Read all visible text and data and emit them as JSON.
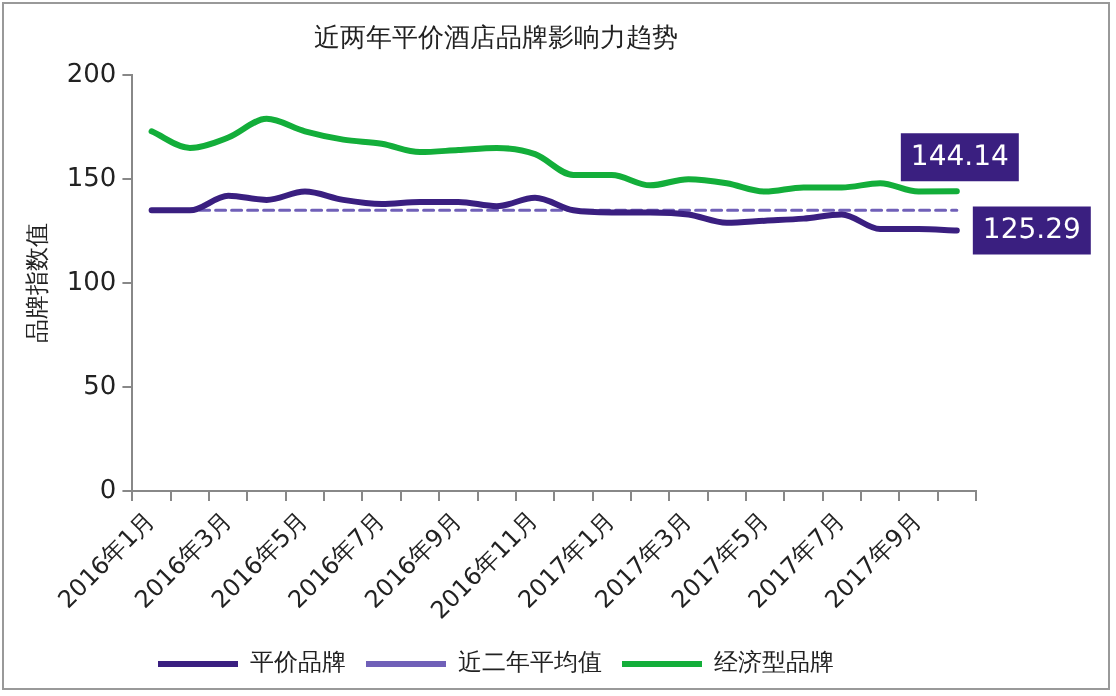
{
  "chart_data": {
    "type": "line",
    "title": "近两年平价酒店品牌影响力趋势",
    "ylabel": "品牌指数值",
    "categories": [
      "2016年1月",
      null,
      "2016年3月",
      null,
      "2016年5月",
      null,
      "2016年7月",
      null,
      "2016年9月",
      null,
      "2016年11月",
      null,
      "2017年1月",
      null,
      "2017年3月",
      null,
      "2017年5月",
      null,
      "2017年7月",
      null,
      "2017年9月",
      null
    ],
    "series": [
      {
        "name": "平价品牌",
        "color": "#3a1f80",
        "values": [
          135,
          135,
          142,
          140,
          144,
          140,
          138,
          139,
          139,
          137,
          141,
          135,
          134,
          134,
          133,
          129,
          130,
          131,
          133,
          126,
          126,
          125.29
        ],
        "value_labels": [
          null,
          null,
          null,
          null,
          null,
          null,
          null,
          null,
          null,
          null,
          null,
          null,
          null,
          null,
          null,
          null,
          null,
          null,
          null,
          null,
          null,
          "125.29"
        ]
      },
      {
        "name": "近二年平均值",
        "color": "#7060b8",
        "line_style": "dashed",
        "values": [
          135,
          135,
          135,
          135,
          135,
          135,
          135,
          135,
          135,
          135,
          135,
          135,
          135,
          135,
          135,
          135,
          135,
          135,
          135,
          135,
          135,
          135
        ]
      },
      {
        "name": "经济型品牌",
        "color": "#13ae3a",
        "values": [
          173,
          165,
          170,
          179,
          173,
          169,
          167,
          163,
          164,
          165,
          162,
          152,
          152,
          147,
          150,
          148,
          144,
          146,
          146,
          148,
          144,
          144.14
        ],
        "value_labels": [
          null,
          null,
          null,
          null,
          null,
          null,
          null,
          null,
          null,
          null,
          null,
          null,
          null,
          null,
          null,
          null,
          null,
          null,
          null,
          null,
          null,
          "144.14"
        ]
      }
    ],
    "ylim": [
      0,
      200
    ],
    "yticks": [
      0,
      50,
      100,
      150,
      200
    ],
    "grid": false,
    "legend": "bottom",
    "marker": "none",
    "line_style": "solid"
  }
}
